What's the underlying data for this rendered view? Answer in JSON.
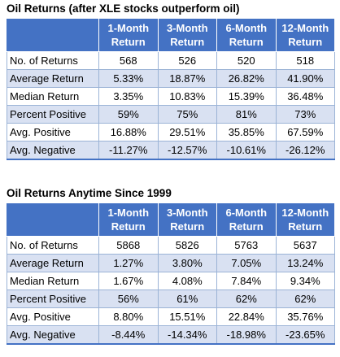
{
  "tables": [
    {
      "title": "Oil Returns (after XLE stocks outperform oil)",
      "headers": [
        {
          "line1": "1-Month",
          "line2": "Return"
        },
        {
          "line1": "3-Month",
          "line2": "Return"
        },
        {
          "line1": "6-Month",
          "line2": "Return"
        },
        {
          "line1": "12-Month",
          "line2": "Return"
        }
      ],
      "rows": [
        {
          "label": "No. of Returns",
          "values": [
            "568",
            "526",
            "520",
            "518"
          ]
        },
        {
          "label": "Average Return",
          "values": [
            "5.33%",
            "18.87%",
            "26.82%",
            "41.90%"
          ]
        },
        {
          "label": "Median Return",
          "values": [
            "3.35%",
            "10.83%",
            "15.39%",
            "36.48%"
          ]
        },
        {
          "label": "Percent Positive",
          "values": [
            "59%",
            "75%",
            "81%",
            "73%"
          ]
        },
        {
          "label": "Avg. Positive",
          "values": [
            "16.88%",
            "29.51%",
            "35.85%",
            "67.59%"
          ]
        },
        {
          "label": "Avg. Negative",
          "values": [
            "-11.27%",
            "-12.57%",
            "-10.61%",
            "-26.12%"
          ]
        }
      ]
    },
    {
      "title": "Oil Returns Anytime Since 1999",
      "headers": [
        {
          "line1": "1-Month",
          "line2": "Return"
        },
        {
          "line1": "3-Month",
          "line2": "Return"
        },
        {
          "line1": "6-Month",
          "line2": "Return"
        },
        {
          "line1": "12-Month",
          "line2": "Return"
        }
      ],
      "rows": [
        {
          "label": "No. of Returns",
          "values": [
            "5868",
            "5826",
            "5763",
            "5637"
          ]
        },
        {
          "label": "Average Return",
          "values": [
            "1.27%",
            "3.80%",
            "7.05%",
            "13.24%"
          ]
        },
        {
          "label": "Median Return",
          "values": [
            "1.67%",
            "4.08%",
            "7.84%",
            "9.34%"
          ]
        },
        {
          "label": "Percent Positive",
          "values": [
            "56%",
            "61%",
            "62%",
            "62%"
          ]
        },
        {
          "label": "Avg. Positive",
          "values": [
            "8.80%",
            "15.51%",
            "22.84%",
            "35.76%"
          ]
        },
        {
          "label": "Avg. Negative",
          "values": [
            "-8.44%",
            "-14.34%",
            "-18.98%",
            "-23.65%"
          ]
        }
      ]
    }
  ],
  "colors": {
    "header_bg": "#4472c4",
    "header_text": "#ffffff",
    "band_bg": "#d9e1f2",
    "row_bg": "#ffffff",
    "grid": "#9bb3d6"
  }
}
